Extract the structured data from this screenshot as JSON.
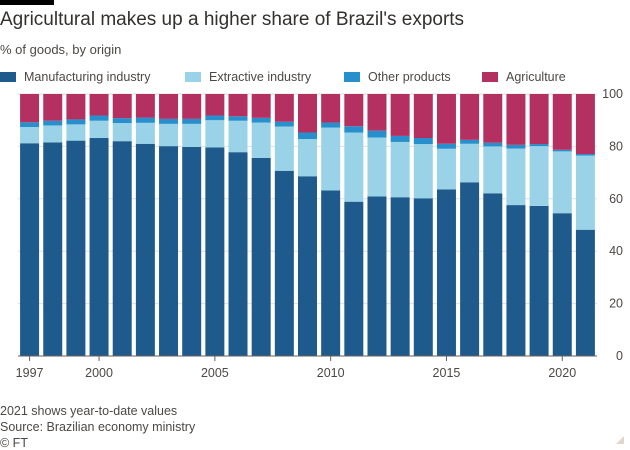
{
  "title": "Agricultural makes up a higher share of Brazil's exports",
  "subtitle": "% of goods, by origin",
  "colors": {
    "manufacturing": "#1e5a8c",
    "extractive": "#9ad3e8",
    "other": "#268fcc",
    "agriculture": "#b43060",
    "axis_text": "#4d4845",
    "grid": "#e6ddd6"
  },
  "legend": [
    {
      "label": "Manufacturing industry",
      "color": "#1e5a8c"
    },
    {
      "label": "Extractive industry",
      "color": "#9ad3e8"
    },
    {
      "label": "Other products",
      "color": "#268fcc"
    },
    {
      "label": "Agriculture",
      "color": "#b43060"
    }
  ],
  "chart_data": {
    "type": "bar",
    "stacked": true,
    "categories": [
      "1997",
      "1998",
      "1999",
      "2000",
      "2001",
      "2002",
      "2003",
      "2004",
      "2005",
      "2006",
      "2007",
      "2008",
      "2009",
      "2010",
      "2011",
      "2012",
      "2013",
      "2014",
      "2015",
      "2016",
      "2017",
      "2018",
      "2019",
      "2020",
      "2021"
    ],
    "x_tick_labels": [
      "1997",
      "2000",
      "2005",
      "2010",
      "2015",
      "2020"
    ],
    "y_ticks": [
      0,
      20,
      40,
      60,
      80,
      100
    ],
    "ylim": [
      0,
      100
    ],
    "y_axis_side": "right",
    "grid": true,
    "legend_position": "top",
    "series": [
      {
        "name": "Manufacturing industry",
        "color": "#1e5a8c",
        "values": [
          81.2,
          81.5,
          82.2,
          83.2,
          82.0,
          81.0,
          80.1,
          79.8,
          79.6,
          77.8,
          75.6,
          70.7,
          68.6,
          63.2,
          58.9,
          60.9,
          60.6,
          60.2,
          63.6,
          66.3,
          62.1,
          57.6,
          57.3,
          54.5,
          48.2
        ]
      },
      {
        "name": "Extractive industry",
        "color": "#9ad3e8",
        "values": [
          6.2,
          6.5,
          6.2,
          6.6,
          6.9,
          8.0,
          8.5,
          8.8,
          10.4,
          12.0,
          13.5,
          16.9,
          14.2,
          24.0,
          26.4,
          22.5,
          21.1,
          20.7,
          15.5,
          14.7,
          17.9,
          21.6,
          22.8,
          23.6,
          28.3
        ]
      },
      {
        "name": "Other products",
        "color": "#268fcc",
        "values": [
          1.8,
          1.8,
          1.9,
          2.0,
          1.9,
          2.0,
          1.9,
          1.9,
          1.8,
          1.7,
          1.8,
          1.8,
          2.5,
          1.9,
          2.4,
          2.6,
          2.3,
          2.3,
          1.9,
          1.5,
          1.4,
          1.4,
          0.8,
          0.6,
          0.6
        ]
      },
      {
        "name": "Agriculture",
        "color": "#b43060",
        "values": [
          10.8,
          10.2,
          9.7,
          8.2,
          9.2,
          9.0,
          9.5,
          9.5,
          8.2,
          8.5,
          9.1,
          10.6,
          14.7,
          10.9,
          12.3,
          14.0,
          16.0,
          16.8,
          19.0,
          17.5,
          18.6,
          19.4,
          19.1,
          21.3,
          22.9
        ]
      }
    ]
  },
  "footer": {
    "note": "2021 shows year-to-date values",
    "source": "Source: Brazilian economy ministry",
    "credit": "© FT"
  }
}
